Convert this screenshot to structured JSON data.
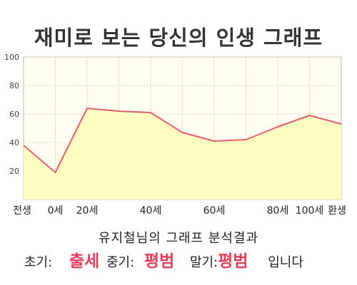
{
  "title": "재미로 보는 당신의 인생 그래프",
  "chart_data": {
    "type": "area",
    "x_labels": [
      "전생",
      "0세",
      "20세",
      "40세",
      "60세",
      "80세",
      "100세",
      "환생"
    ],
    "points": [
      {
        "x": "전생",
        "y": 38
      },
      {
        "x": "0세",
        "y": 19
      },
      {
        "x": "20세",
        "y": 64
      },
      {
        "x": "30세",
        "y": 62
      },
      {
        "x": "40세",
        "y": 61
      },
      {
        "x": "50세",
        "y": 47
      },
      {
        "x": "60세",
        "y": 41
      },
      {
        "x": "70세",
        "y": 42
      },
      {
        "x": "80세",
        "y": 51
      },
      {
        "x": "100세",
        "y": 59
      },
      {
        "x": "환생",
        "y": 53
      }
    ],
    "y_ticks": [
      20,
      40,
      60,
      80,
      100
    ],
    "ylim": [
      0,
      100
    ],
    "grid": true,
    "colors": {
      "line": "#e06070",
      "fill": "#fffcc2",
      "grid": "#d9d2a6",
      "plot_bg": "#fffef0"
    }
  },
  "result": {
    "title": "유지철님의 그래프 분석결과",
    "early_label": "초기:",
    "early_value": "출세",
    "mid_label": "중기:",
    "mid_value": "평범",
    "late_label": "말기:",
    "late_value": "평범",
    "suffix": "입니다"
  }
}
